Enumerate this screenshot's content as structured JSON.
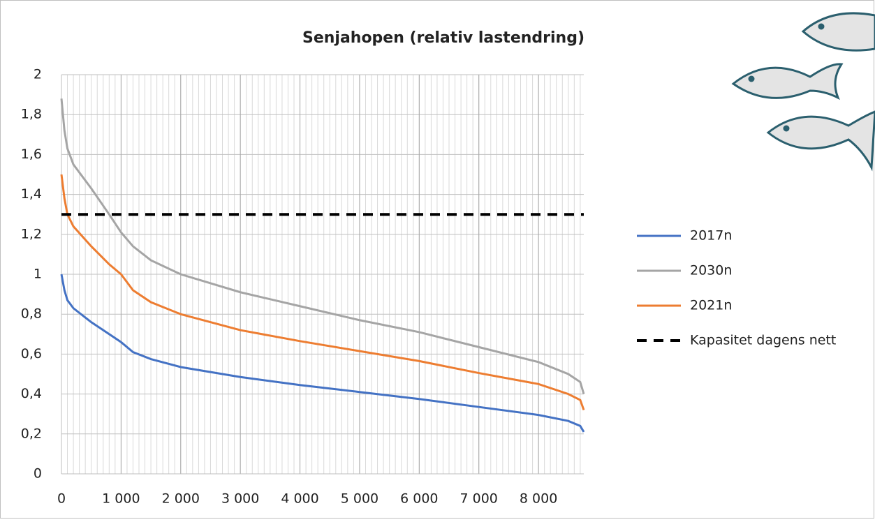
{
  "chart_data": {
    "type": "line",
    "title": "Senjahopen (relativ lastendring)",
    "x": [
      0,
      50,
      100,
      200,
      500,
      800,
      1000,
      1200,
      1500,
      2000,
      3000,
      4000,
      5000,
      6000,
      7000,
      8000,
      8500,
      8700,
      8760
    ],
    "series": [
      {
        "name": "2017n",
        "color": "#4472c4",
        "dash": false,
        "values": [
          1.0,
          0.92,
          0.87,
          0.83,
          0.76,
          0.7,
          0.66,
          0.61,
          0.575,
          0.535,
          0.485,
          0.445,
          0.41,
          0.375,
          0.335,
          0.295,
          0.265,
          0.24,
          0.21
        ]
      },
      {
        "name": "2030n",
        "color": "#a5a5a5",
        "dash": false,
        "values": [
          1.88,
          1.72,
          1.63,
          1.55,
          1.43,
          1.3,
          1.21,
          1.14,
          1.07,
          1.0,
          0.91,
          0.84,
          0.77,
          0.71,
          0.635,
          0.56,
          0.5,
          0.46,
          0.4
        ]
      },
      {
        "name": "2021n",
        "color": "#ed7d31",
        "dash": false,
        "values": [
          1.5,
          1.38,
          1.3,
          1.24,
          1.14,
          1.05,
          1.0,
          0.92,
          0.86,
          0.8,
          0.72,
          0.665,
          0.615,
          0.565,
          0.505,
          0.45,
          0.4,
          0.37,
          0.32
        ]
      },
      {
        "name": "Kapasitet dagens nett",
        "color": "#000000",
        "dash": true,
        "values": [
          1.3,
          1.3,
          1.3,
          1.3,
          1.3,
          1.3,
          1.3,
          1.3,
          1.3,
          1.3,
          1.3,
          1.3,
          1.3,
          1.3,
          1.3,
          1.3,
          1.3,
          1.3,
          1.3
        ]
      }
    ],
    "xlim": [
      0,
      8760
    ],
    "xticks": [
      0,
      {
        "value": 1000,
        "label": "1 000"
      },
      {
        "value": 2000,
        "label": "2 000"
      },
      {
        "value": 3000,
        "label": "3 000"
      },
      {
        "value": 4000,
        "label": "4 000"
      },
      {
        "value": 5000,
        "label": "5 000"
      },
      {
        "value": 6000,
        "label": "6 000"
      },
      {
        "value": 7000,
        "label": "7 000"
      },
      {
        "value": 8000,
        "label": "8 000"
      }
    ],
    "ylim": [
      0,
      2
    ],
    "yticks": [
      0,
      {
        "value": 0.2,
        "label": "0,2"
      },
      {
        "value": 0.4,
        "label": "0,4"
      },
      {
        "value": 0.6,
        "label": "0,6"
      },
      {
        "value": 0.8,
        "label": "0,8"
      },
      1,
      {
        "value": 1.2,
        "label": "1,2"
      },
      {
        "value": 1.4,
        "label": "1,4"
      },
      {
        "value": 1.6,
        "label": "1,6"
      },
      {
        "value": 1.8,
        "label": "1,8"
      },
      2
    ],
    "grid": true,
    "legend": "right"
  }
}
